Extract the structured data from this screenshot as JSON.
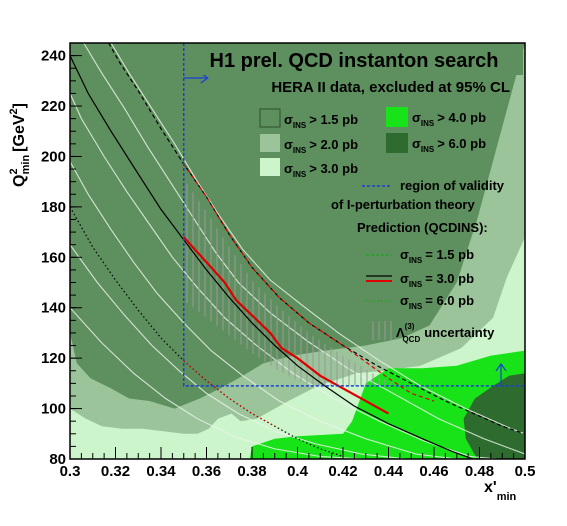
{
  "chart_data": {
    "type": "area",
    "title": "H1 prel. QCD instanton search",
    "subtitle": "HERA II data, excluded at 95% CL",
    "xlabel": "x'",
    "xlabel_sub": "min",
    "ylabel": "Q",
    "ylabel_sup": "2",
    "ylabel_sub": "min",
    "ylabel_unit": "[GeV",
    "ylabel_unit_sup": "2",
    "ylabel_unit_close": "]",
    "xlim": [
      0.3,
      0.5
    ],
    "ylim": [
      80,
      245
    ],
    "xticks": [
      "0.3",
      "0.32",
      "0.34",
      "0.36",
      "0.38",
      "0.4",
      "0.42",
      "0.44",
      "0.46",
      "0.48",
      "0.5"
    ],
    "yticks": [
      "80",
      "100",
      "120",
      "140",
      "160",
      "180",
      "200",
      "220",
      "240"
    ],
    "exclusion_regions": [
      {
        "label": "> 1.5 pb",
        "color": "#5e8f5e",
        "boundary": [
          [
            0.3,
            245
          ],
          [
            0.3,
            130
          ],
          [
            0.303,
            118
          ],
          [
            0.309,
            112
          ],
          [
            0.318,
            108
          ],
          [
            0.326,
            104
          ],
          [
            0.335,
            103
          ],
          [
            0.346,
            100
          ],
          [
            0.357,
            104
          ],
          [
            0.366,
            108
          ],
          [
            0.376,
            113
          ],
          [
            0.385,
            118
          ],
          [
            0.398,
            121
          ],
          [
            0.412,
            123
          ],
          [
            0.43,
            125
          ],
          [
            0.446,
            128
          ],
          [
            0.458,
            133
          ],
          [
            0.47,
            150
          ],
          [
            0.479,
            175
          ],
          [
            0.488,
            205
          ],
          [
            0.5,
            245
          ]
        ]
      },
      {
        "label": "> 2.0 pb",
        "color": "#9bc49b",
        "boundary": [
          [
            0.3,
            100
          ],
          [
            0.307,
            96
          ],
          [
            0.314,
            93
          ],
          [
            0.323,
            92
          ],
          [
            0.332,
            92
          ],
          [
            0.341,
            91
          ],
          [
            0.35,
            90
          ],
          [
            0.356,
            90
          ],
          [
            0.361,
            92
          ],
          [
            0.365,
            96
          ],
          [
            0.371,
            98
          ],
          [
            0.375,
            95
          ],
          [
            0.382,
            96
          ],
          [
            0.396,
            103
          ],
          [
            0.409,
            109
          ],
          [
            0.426,
            114
          ],
          [
            0.438,
            115
          ],
          [
            0.454,
            117
          ],
          [
            0.472,
            124
          ],
          [
            0.486,
            136
          ],
          [
            0.492,
            152
          ],
          [
            0.5,
            168
          ]
        ]
      },
      {
        "label": "> 3.0 pb",
        "color": "#ccf5cc"
      },
      {
        "label": "> 4.0 pb",
        "color": "#18e218",
        "boundary": [
          [
            0.379,
            80
          ],
          [
            0.38,
            85
          ],
          [
            0.39,
            88
          ],
          [
            0.4,
            89
          ],
          [
            0.42,
            90
          ],
          [
            0.424,
            95
          ],
          [
            0.43,
            110
          ],
          [
            0.44,
            116
          ],
          [
            0.455,
            116
          ],
          [
            0.47,
            117
          ],
          [
            0.485,
            121
          ],
          [
            0.5,
            123
          ],
          [
            0.5,
            80
          ]
        ]
      },
      {
        "label": "> 6.0 pb",
        "color": "#2e6b2e",
        "boundary": [
          [
            0.479,
            80
          ],
          [
            0.474,
            88
          ],
          [
            0.473,
            96
          ],
          [
            0.478,
            104
          ],
          [
            0.486,
            109
          ],
          [
            0.493,
            113
          ],
          [
            0.5,
            114
          ],
          [
            0.5,
            80
          ]
        ]
      }
    ],
    "region_labels": {
      "text1": "σ",
      "text2": "INS"
    },
    "validity_region": {
      "label1": "region of validity",
      "label2": "of I-perturbation theory",
      "x_min": 0.35,
      "y_min": 109,
      "color": "#1a3fd6"
    },
    "prediction_label": "Prediction (QCDINS):",
    "series": [
      {
        "name": "σ_INS = 1.5 pb",
        "legend_value": "= 1.5 pb",
        "style": "dashed",
        "color": "#000000",
        "x": [
          0.317,
          0.322,
          0.33,
          0.34,
          0.35,
          0.36,
          0.37,
          0.38,
          0.392,
          0.405,
          0.42,
          0.435,
          0.45,
          0.465,
          0.48,
          0.49,
          0.5
        ],
        "y": [
          245,
          237,
          226,
          211,
          197,
          184,
          169,
          156,
          144,
          134,
          125,
          117,
          110,
          103,
          97,
          93,
          90
        ]
      },
      {
        "name": "σ_INS = 3.0 pb",
        "legend_value": "= 3.0 pb",
        "style": "solid",
        "color": "#000000",
        "x": [
          0.3,
          0.308,
          0.318,
          0.33,
          0.34,
          0.35,
          0.36,
          0.37,
          0.38,
          0.39,
          0.4,
          0.412,
          0.425,
          0.44,
          0.455,
          0.468,
          0.48
        ],
        "y": [
          240,
          225,
          210,
          193,
          179,
          167,
          155,
          144,
          134,
          125,
          117,
          109,
          101,
          94,
          88,
          83,
          79
        ]
      },
      {
        "name": "σ_INS = 6.0 pb",
        "legend_value": "= 6.0 pb",
        "style": "dotted",
        "color": "#000000",
        "x": [
          0.3,
          0.31,
          0.32,
          0.33,
          0.34,
          0.35,
          0.36,
          0.37,
          0.38,
          0.39,
          0.4,
          0.41,
          0.42
        ],
        "y": [
          180,
          164,
          151,
          139,
          128,
          119,
          111,
          104,
          98,
          93,
          88,
          84,
          81
        ]
      }
    ],
    "red_curves": [
      {
        "style": "dashed",
        "color": "#dd0000",
        "x": [
          0.35,
          0.36,
          0.37,
          0.38,
          0.392,
          0.405,
          0.42,
          0.44,
          0.45,
          0.46
        ],
        "y": [
          197,
          184,
          169,
          156,
          144,
          134,
          125,
          112,
          106,
          103
        ]
      },
      {
        "style": "solid",
        "color": "#dd0000",
        "x": [
          0.35,
          0.355,
          0.36,
          0.368,
          0.373,
          0.38,
          0.388,
          0.393,
          0.4,
          0.41,
          0.42,
          0.43,
          0.44
        ],
        "y": [
          168,
          163,
          158,
          150,
          143,
          137,
          130,
          124,
          120,
          113,
          108,
          103,
          98
        ]
      },
      {
        "style": "dotted",
        "color": "#dd0000",
        "x": [
          0.35,
          0.36,
          0.37,
          0.38,
          0.39
        ],
        "y": [
          119,
          111,
          104,
          98,
          93
        ]
      }
    ],
    "uncertainty_band": {
      "label": "uncertainty",
      "symbol": "Λ",
      "symbol_sup": "(3)",
      "symbol_sub": "QCD",
      "upper": {
        "x": [
          0.35,
          0.36,
          0.37,
          0.38,
          0.392,
          0.405,
          0.42,
          0.435,
          0.446
        ],
        "y": [
          191,
          178,
          164,
          151,
          140,
          130,
          121,
          113,
          109
        ]
      },
      "lower": {
        "x": [
          0.35,
          0.36,
          0.37,
          0.38,
          0.39,
          0.4,
          0.41,
          0.42
        ],
        "y": [
          143,
          136,
          129,
          122,
          116,
          111,
          109,
          109
        ]
      }
    },
    "extra_contours": [
      {
        "x": [
          0.318,
          0.326,
          0.336,
          0.346,
          0.356,
          0.366,
          0.376,
          0.388,
          0.402,
          0.418,
          0.436,
          0.454,
          0.474,
          0.494,
          0.5
        ],
        "y": [
          245,
          233,
          219,
          205,
          190,
          176,
          163,
          151,
          141,
          130,
          119,
          109,
          100,
          92,
          90
        ]
      },
      {
        "x": [
          0.306,
          0.314,
          0.324,
          0.334,
          0.344,
          0.354,
          0.364,
          0.374,
          0.388,
          0.404,
          0.422,
          0.442,
          0.462,
          0.482,
          0.5
        ],
        "y": [
          245,
          233,
          219,
          204,
          190,
          176,
          162,
          150,
          138,
          127,
          116,
          106,
          96,
          88,
          82
        ]
      },
      {
        "x": [
          0.3,
          0.305,
          0.315,
          0.325,
          0.335,
          0.345,
          0.356,
          0.368,
          0.382,
          0.398,
          0.416,
          0.436,
          0.456,
          0.476,
          0.488
        ],
        "y": [
          225,
          215,
          200,
          186,
          173,
          160,
          148,
          136,
          125,
          114,
          104,
          95,
          87,
          81,
          80
        ]
      },
      {
        "x": [
          0.3,
          0.308,
          0.318,
          0.328,
          0.338,
          0.35,
          0.362,
          0.376,
          0.392,
          0.41,
          0.43,
          0.452,
          0.47
        ],
        "y": [
          198,
          185,
          171,
          158,
          146,
          134,
          123,
          113,
          103,
          95,
          88,
          82,
          80
        ]
      },
      {
        "x": [
          0.3,
          0.312,
          0.324,
          0.336,
          0.348,
          0.36,
          0.374,
          0.39,
          0.408,
          0.428,
          0.448
        ],
        "y": [
          165,
          150,
          137,
          125,
          115,
          106,
          98,
          91,
          86,
          82,
          80
        ]
      },
      {
        "x": [
          0.3,
          0.314,
          0.328,
          0.342,
          0.356,
          0.372,
          0.39,
          0.41,
          0.43
        ],
        "y": [
          140,
          126,
          114,
          104,
          96,
          89,
          84,
          81,
          80
        ]
      }
    ]
  }
}
